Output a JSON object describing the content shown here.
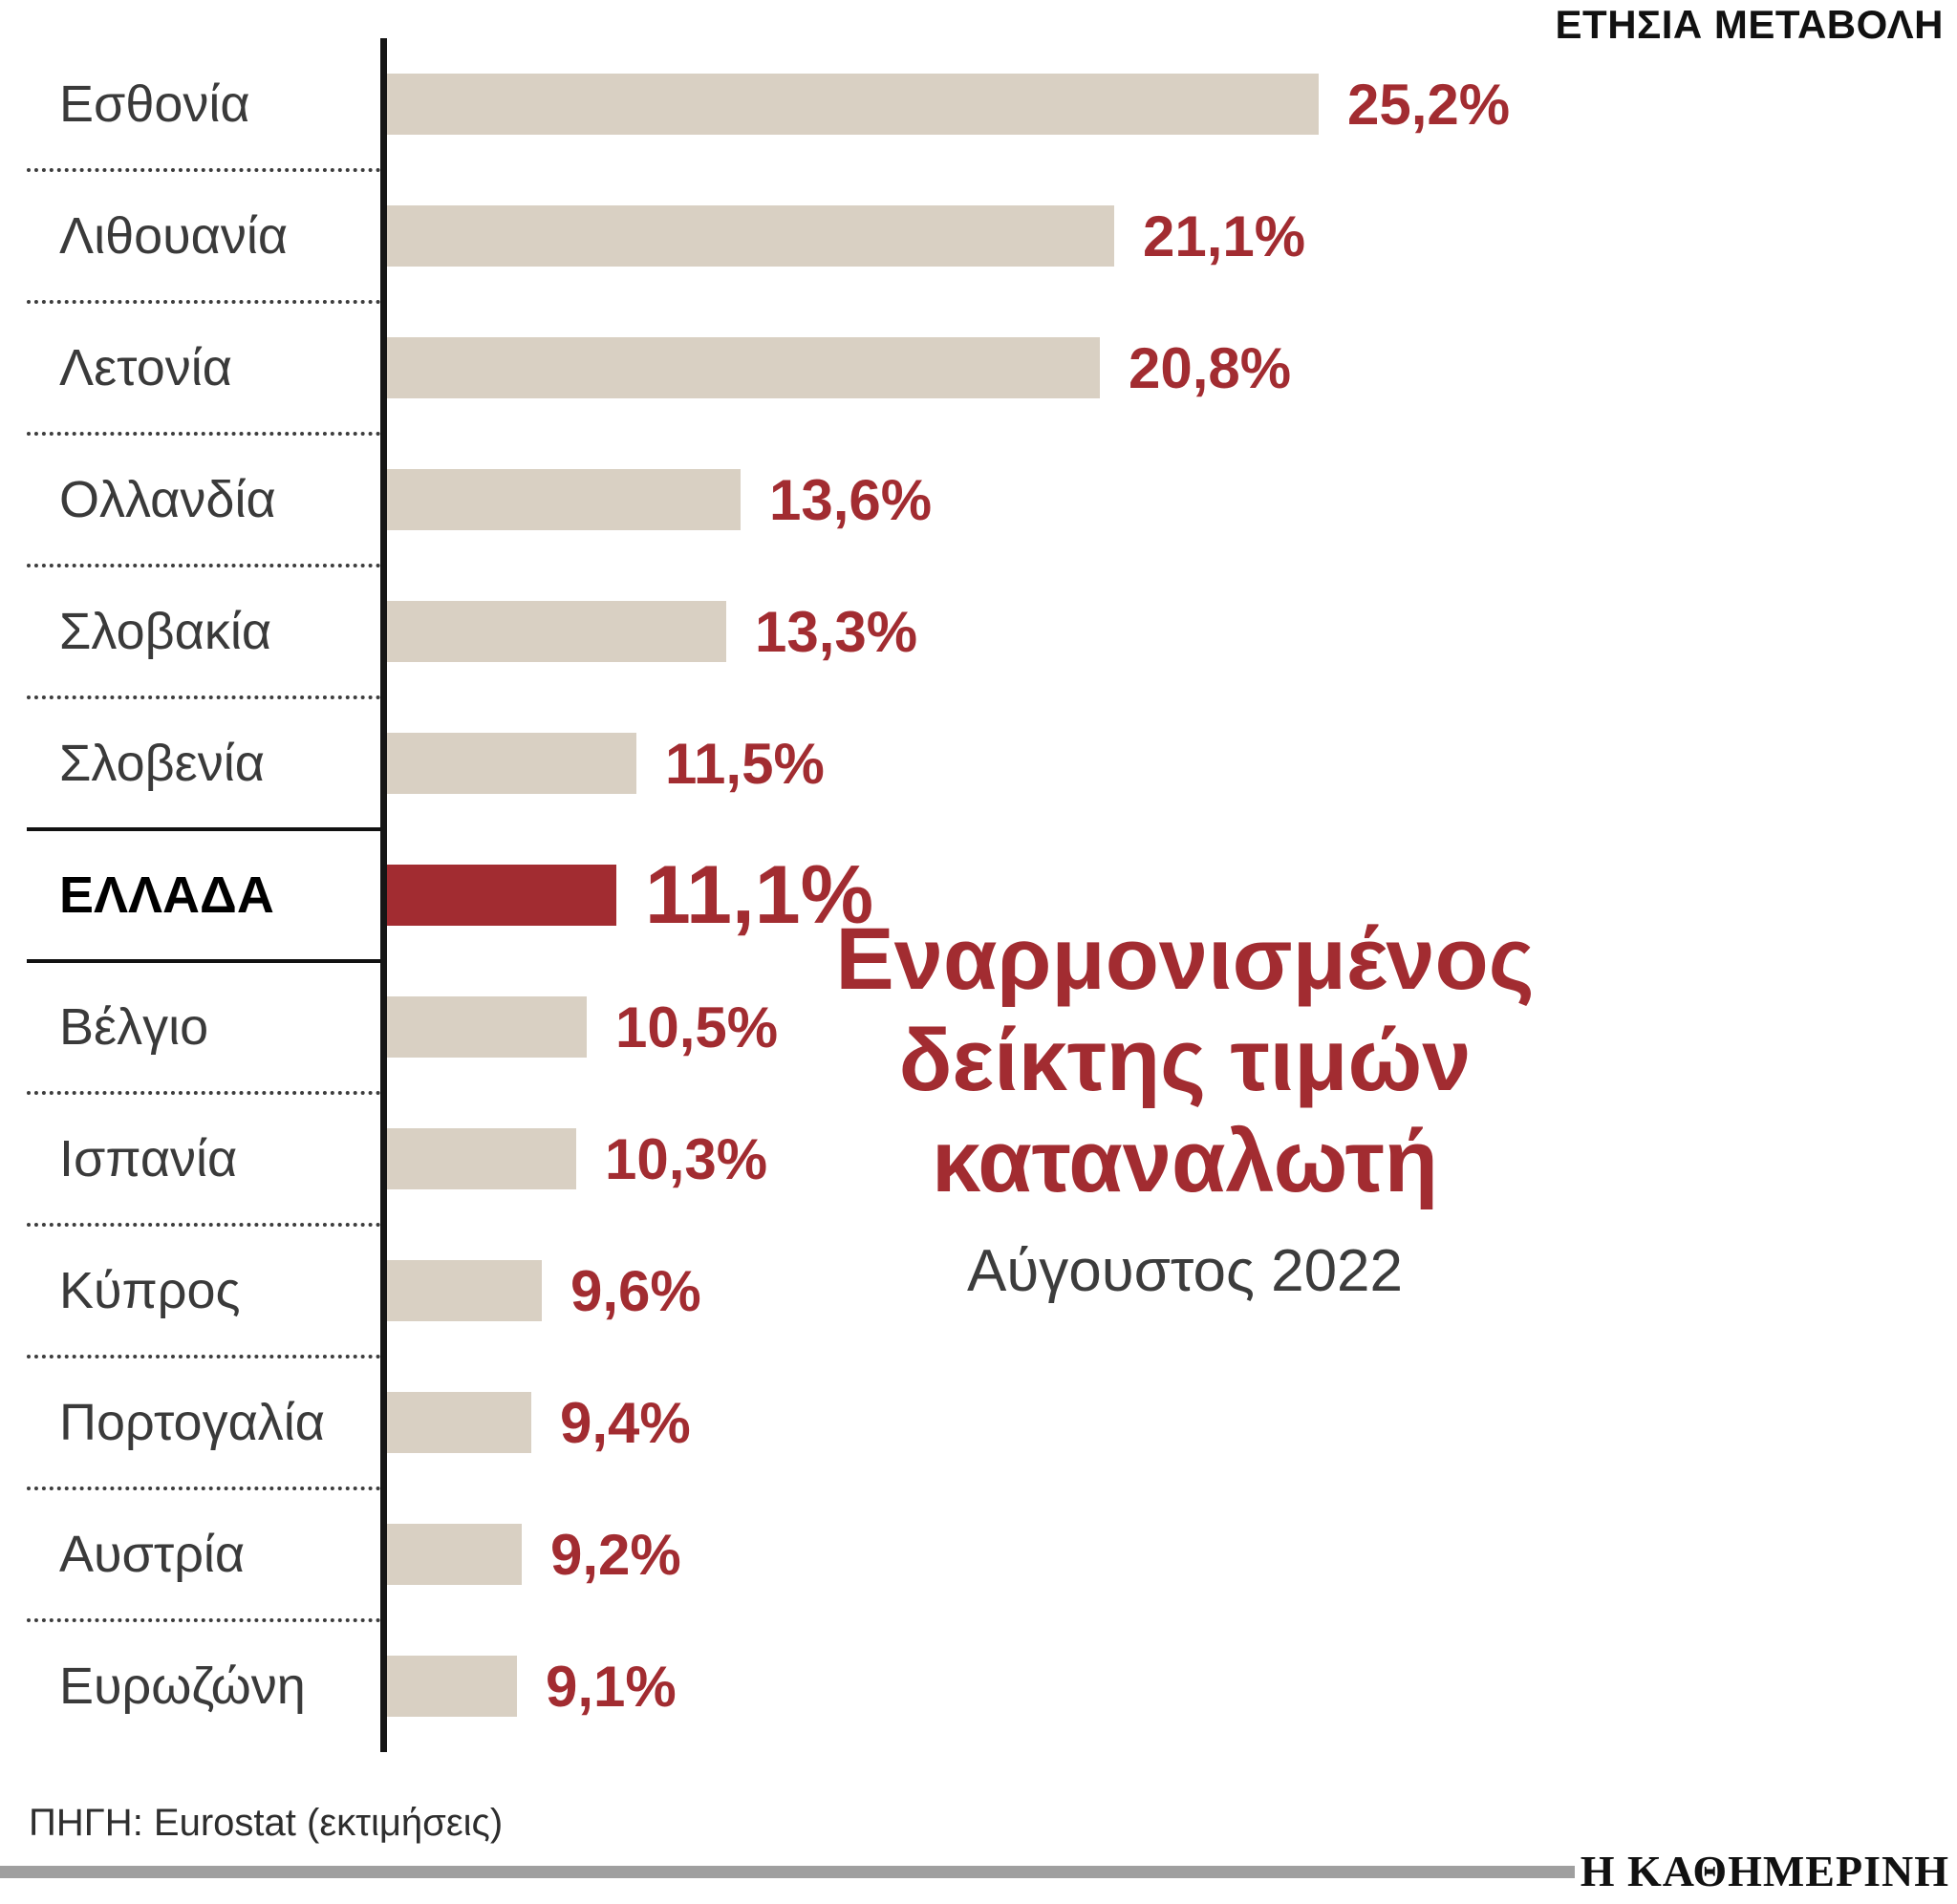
{
  "page": {
    "brand": "Η ΚΑΘΗΜΕΡΙΝΗ"
  },
  "chart_data": {
    "type": "bar",
    "orientation": "horizontal",
    "title": "Εναρμονισμένος δείκτης τιμών καταναλωτή",
    "title_lines": [
      "Εναρμονισμένος",
      "δείκτης τιμών",
      "καταναλωτή"
    ],
    "subtitle": "Αύγουστος 2022",
    "axis_label": "ΕΤΗΣΙΑ ΜΕΤΑΒΟΛΗ",
    "source": "ΠΗΓΗ: Eurostat (εκτιμήσεις)",
    "categories": [
      "Εσθονία",
      "Λιθουανία",
      "Λετονία",
      "Ολλανδία",
      "Σλοβακία",
      "Σλοβενία",
      "ΕΛΛΑΔΑ",
      "Βέλγιο",
      "Ισπανία",
      "Κύπρος",
      "Πορτογαλία",
      "Αυστρία",
      "Ευρωζώνη"
    ],
    "values": [
      25.2,
      21.1,
      20.8,
      13.6,
      13.3,
      11.5,
      11.1,
      10.5,
      10.3,
      9.6,
      9.4,
      9.2,
      9.1
    ],
    "value_labels": [
      "25,2%",
      "21,1%",
      "20,8%",
      "13,6%",
      "13,3%",
      "11,5%",
      "11,1%",
      "10,5%",
      "10,3%",
      "9,6%",
      "9,4%",
      "9,2%",
      "9,1%"
    ],
    "highlight_index": 6,
    "highlight_category": "ΕΛΛΑΔΑ",
    "xlim": [
      6.5,
      25.2
    ],
    "grid": false,
    "legend": false,
    "colors": {
      "bar": "#d9d0c3",
      "highlight": "#a22c31",
      "value_text": "#a22c31",
      "label_text": "#3a3a3a"
    }
  }
}
